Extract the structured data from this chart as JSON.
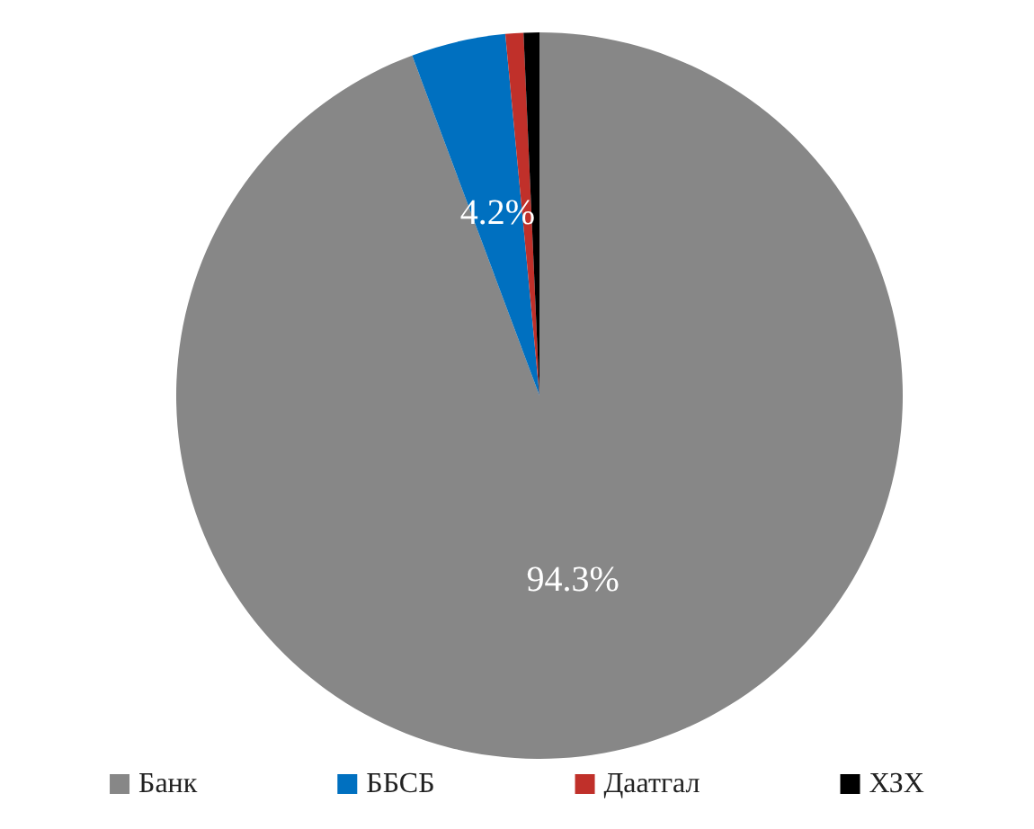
{
  "chart_data": {
    "type": "pie",
    "categories": [
      "Банк",
      "ББСБ",
      "Даатгал",
      "ХЗХ"
    ],
    "values": [
      94.3,
      4.2,
      0.8,
      0.7
    ],
    "colors": [
      "#878787",
      "#0070c0",
      "#c0302a",
      "#000000"
    ],
    "value_labels": [
      "94.3%",
      "4.2%",
      null,
      null
    ],
    "legend": "bottom"
  }
}
